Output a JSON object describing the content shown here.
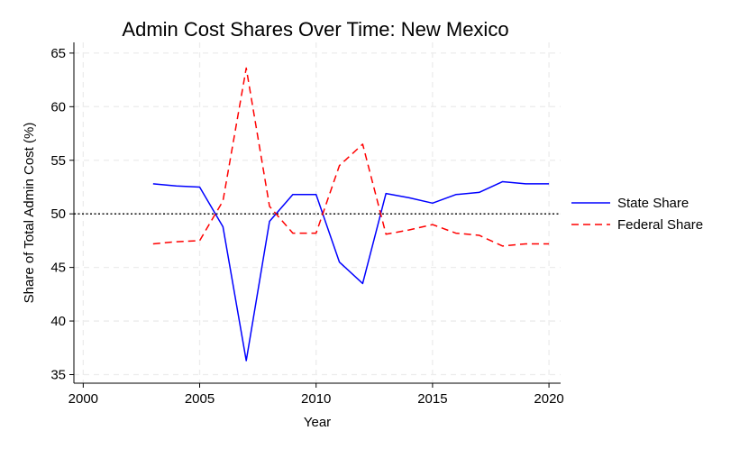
{
  "chart_data": {
    "type": "line",
    "title": "Admin Cost Shares Over Time: New Mexico",
    "xlabel": "Year",
    "ylabel": "Share of Total Admin Cost (%)",
    "xlim": [
      1999.6,
      2020.5
    ],
    "ylim": [
      34.2,
      66.0
    ],
    "xticks": [
      2000,
      2005,
      2010,
      2015,
      2020
    ],
    "yticks": [
      35,
      40,
      45,
      50,
      55,
      60,
      65
    ],
    "grid": true,
    "reference_line": {
      "y": 50,
      "style": "dotted",
      "color": "#000000"
    },
    "legend_position": "right",
    "x": [
      2003,
      2004,
      2005,
      2006,
      2007,
      2008,
      2009,
      2010,
      2011,
      2012,
      2013,
      2014,
      2015,
      2016,
      2017,
      2018,
      2019,
      2020
    ],
    "series": [
      {
        "name": "State Share",
        "color": "#0000ff",
        "style": "solid",
        "values": [
          52.8,
          52.6,
          52.5,
          48.8,
          36.3,
          49.3,
          51.8,
          51.8,
          45.5,
          43.5,
          51.9,
          51.5,
          51.0,
          51.8,
          52.0,
          53.0,
          52.8,
          52.8
        ]
      },
      {
        "name": "Federal Share",
        "color": "#ff0000",
        "style": "dashed",
        "values": [
          47.2,
          47.4,
          47.5,
          51.2,
          63.6,
          50.7,
          48.2,
          48.2,
          54.5,
          56.5,
          48.1,
          48.5,
          49.0,
          48.2,
          48.0,
          47.0,
          47.2,
          47.2
        ]
      }
    ]
  }
}
